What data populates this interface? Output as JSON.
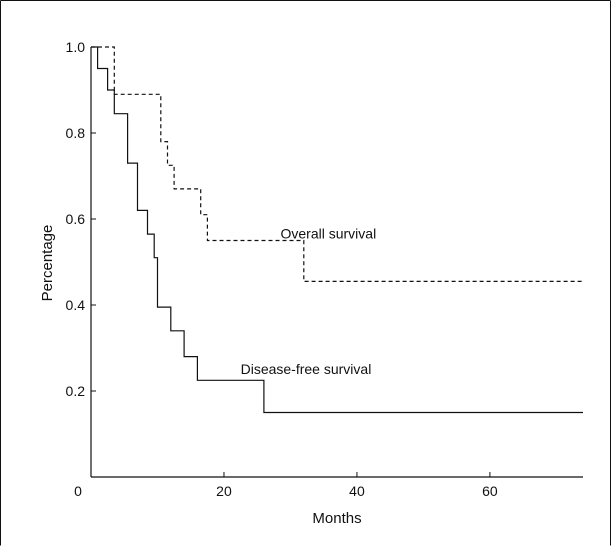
{
  "chart_data": {
    "type": "line",
    "xlabel": "Months",
    "ylabel": "Percentage",
    "xlim": [
      0,
      74
    ],
    "ylim": [
      0,
      1.0
    ],
    "x_ticks": [
      0,
      20,
      40,
      60
    ],
    "y_ticks": [
      0.2,
      0.4,
      0.6,
      0.8,
      1.0
    ],
    "x_tick_labels": [
      "0",
      "20",
      "40",
      "60"
    ],
    "y_tick_labels": [
      "0.2",
      "0.4",
      "0.6",
      "0.8",
      "1.0"
    ],
    "grid": false,
    "series": [
      {
        "name": "Overall survival",
        "style": "dashed",
        "step": true,
        "color": "#111111",
        "x": [
          0,
          3.5,
          3.5,
          10.5,
          10.5,
          11.5,
          11.5,
          12.5,
          12.5,
          16.5,
          16.5,
          17.5,
          17.5,
          32,
          32,
          74
        ],
        "y": [
          1.0,
          1.0,
          0.89,
          0.89,
          0.78,
          0.78,
          0.725,
          0.725,
          0.67,
          0.67,
          0.61,
          0.61,
          0.55,
          0.55,
          0.455,
          0.455
        ]
      },
      {
        "name": "Disease-free survival",
        "style": "solid",
        "step": true,
        "color": "#111111",
        "x": [
          0,
          1,
          1,
          2.5,
          2.5,
          3.5,
          3.5,
          5.5,
          5.5,
          7,
          7,
          8.5,
          8.5,
          9.5,
          9.5,
          10,
          10,
          12,
          12,
          14,
          14,
          16,
          16,
          26,
          26,
          74
        ],
        "y": [
          1.0,
          1.0,
          0.95,
          0.95,
          0.9,
          0.9,
          0.845,
          0.845,
          0.73,
          0.73,
          0.62,
          0.62,
          0.565,
          0.565,
          0.51,
          0.51,
          0.395,
          0.395,
          0.34,
          0.34,
          0.28,
          0.28,
          0.225,
          0.225,
          0.15,
          0.15
        ]
      }
    ],
    "annotations": [
      {
        "text": "Overall survival",
        "x": 28.5,
        "y": 0.555
      },
      {
        "text": "Disease-free survival",
        "x": 22.5,
        "y": 0.24
      }
    ]
  }
}
